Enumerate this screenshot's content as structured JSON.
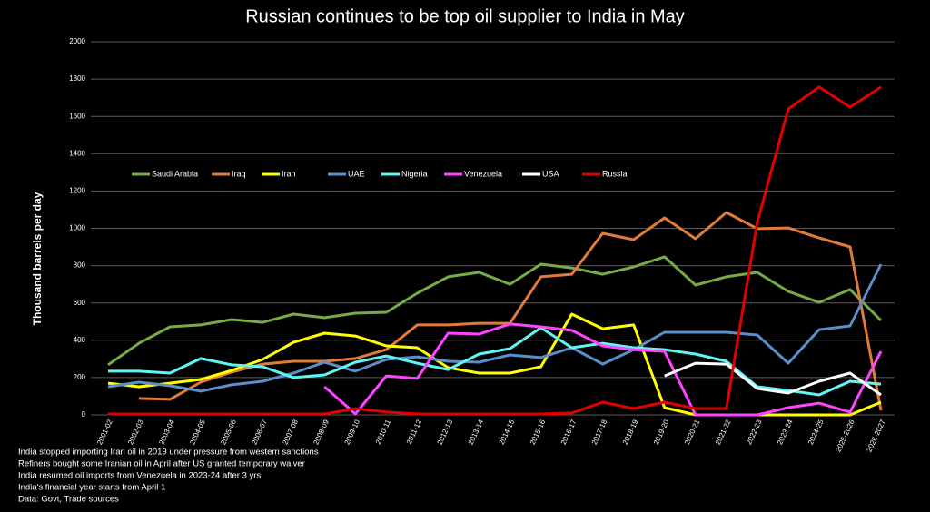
{
  "chart_data": {
    "type": "line",
    "title": "Russian continues to be top oil supplier to India in May",
    "y_label": "Thousand barrels per day",
    "categories": [
      "2001-02",
      "2002-03",
      "2003-04",
      "2004-05",
      "2005-06",
      "2006-07",
      "2007-08",
      "2008-09",
      "2009-10",
      "2010-11",
      "2011-12",
      "2012-13",
      "2013-14",
      "2014-15",
      "2015-16",
      "2016-17",
      "2017-18",
      "2018-19",
      "2019-20",
      "2020-21",
      "2021-22",
      "2022-23",
      "2023-24",
      "2024-25",
      "2025-2026",
      "2026-2027"
    ],
    "series": [
      {
        "name": "Saudi Arabia",
        "color": "#77ab43",
        "values": [
          268,
          384,
          472,
          482,
          511,
          496,
          540,
          521,
          545,
          550,
          652,
          740,
          764,
          700,
          808,
          788,
          754,
          793,
          847,
          696,
          740,
          764,
          662,
          603,
          672,
          506
        ]
      },
      {
        "name": "Iraq",
        "color": "#e07b39",
        "values": [
          null,
          88,
          83,
          175,
          229,
          272,
          287,
          287,
          302,
          350,
          482,
          482,
          491,
          491,
          740,
          754,
          973,
          939,
          1056,
          944,
          1085,
          998,
          1002,
          949,
          900,
          24
        ]
      },
      {
        "name": "Iran",
        "color": "#ffff00",
        "values": [
          170,
          151,
          170,
          190,
          238,
          297,
          389,
          438,
          423,
          370,
          360,
          253,
          224,
          224,
          258,
          540,
          462,
          482,
          39,
          0,
          0,
          0,
          0,
          0,
          0,
          68
        ]
      },
      {
        "name": "UAE",
        "color": "#5b8fc9",
        "values": [
          151,
          175,
          156,
          127,
          161,
          180,
          224,
          282,
          234,
          297,
          311,
          287,
          282,
          321,
          307,
          360,
          272,
          350,
          443,
          443,
          443,
          428,
          277,
          457,
          477,
          808
        ]
      },
      {
        "name": "Nigeria",
        "color": "#5ff5f5",
        "values": [
          234,
          234,
          224,
          302,
          268,
          258,
          200,
          214,
          282,
          316,
          277,
          243,
          326,
          355,
          467,
          360,
          384,
          360,
          350,
          326,
          287,
          151,
          131,
          107,
          180,
          165
        ]
      },
      {
        "name": "Venezuela",
        "color": "#ff44ff",
        "values": [
          null,
          null,
          null,
          null,
          null,
          null,
          null,
          151,
          5,
          209,
          195,
          438,
          433,
          487,
          472,
          453,
          370,
          350,
          340,
          0,
          0,
          0,
          39,
          63,
          15,
          340
        ]
      },
      {
        "name": "USA",
        "color": "#ffffff",
        "values": [
          null,
          null,
          null,
          null,
          null,
          null,
          null,
          null,
          null,
          null,
          null,
          null,
          null,
          null,
          null,
          null,
          null,
          null,
          209,
          277,
          272,
          141,
          117,
          180,
          224,
          107
        ]
      },
      {
        "name": "Russia",
        "color": "#e00000",
        "values": [
          5,
          5,
          5,
          5,
          5,
          5,
          5,
          5,
          34,
          15,
          5,
          5,
          5,
          5,
          5,
          10,
          68,
          34,
          68,
          34,
          34,
          1032,
          1640,
          1757,
          1650,
          1757
        ]
      }
    ],
    "ylim": [
      0,
      2000
    ],
    "yticks": [
      0,
      200,
      400,
      600,
      800,
      1000,
      1200,
      1400,
      1600,
      1800,
      2000
    ],
    "grid": true,
    "notes": [
      "India stopped importing Iran oil in 2019 under pressure from western sanctions",
      "Refiners bought some Iranian oil in April after US granted temporary waiver",
      "India resumed oil imports from Venezuela in 2023-24 after 3 yrs",
      "India's financial year starts from April 1",
      "Data: Govt, Trade sources"
    ]
  }
}
